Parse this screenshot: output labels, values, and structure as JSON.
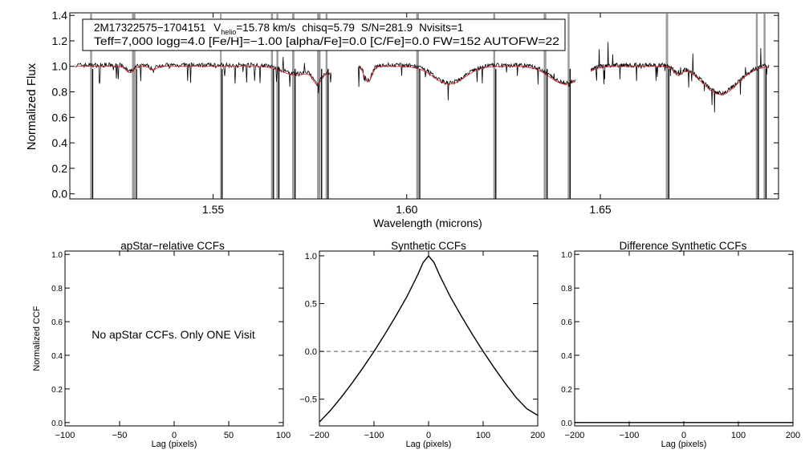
{
  "chart_data": [
    {
      "id": "spectrum",
      "type": "line",
      "title": "",
      "xlabel": "Wavelength (microns)",
      "ylabel": "Normalized Flux",
      "xlim": [
        1.513,
        1.696
      ],
      "ylim": [
        -0.04,
        1.42
      ],
      "xticks": [
        1.55,
        1.6,
        1.65
      ],
      "xtick_labels": [
        "1.55",
        "1.60",
        "1.65"
      ],
      "yticks": [
        0.0,
        0.2,
        0.4,
        0.6,
        0.8,
        1.0,
        1.2,
        1.4
      ],
      "ytick_labels": [
        "0.0",
        "0.2",
        "0.4",
        "0.6",
        "0.8",
        "1.0",
        "1.2",
        "1.4"
      ],
      "annotation": {
        "star": "2M17322575−1704151",
        "vhelio_sym": "V",
        "vhelio_sub": "helio",
        "vhelio_val": "=15.78 km/s",
        "chisq": "chisq=5.79",
        "sn": "S/N=281.9",
        "nvisits": "Nvisits=1",
        "line2": "Teff=7,000 logg=4.0 [Fe/H]=−1.00 [alpha/Fe]=0.0 [C/Fe]=0.0 FW=152 AUTOFW=22"
      },
      "chips": [
        [
          1.5145,
          1.5805
        ],
        [
          1.5875,
          1.6435
        ],
        [
          1.6475,
          1.6935
        ]
      ],
      "lines": [
        {
          "center": 1.5285,
          "width": 0.001,
          "depth": 0.05
        },
        {
          "center": 1.5345,
          "width": 0.0008,
          "depth": 0.03
        },
        {
          "center": 1.5715,
          "width": 0.0035,
          "depth": 0.07
        },
        {
          "center": 1.577,
          "width": 0.0012,
          "depth": 0.12
        },
        {
          "center": 1.58,
          "width": 0.001,
          "depth": 0.05
        },
        {
          "center": 1.59,
          "width": 0.001,
          "depth": 0.12
        },
        {
          "center": 1.611,
          "width": 0.004,
          "depth": 0.14
        },
        {
          "center": 1.641,
          "width": 0.004,
          "depth": 0.14
        },
        {
          "center": 1.681,
          "width": 0.0045,
          "depth": 0.22
        },
        {
          "center": 1.67,
          "width": 0.001,
          "depth": 0.06
        }
      ],
      "masks": [
        {
          "x": 1.5185,
          "w": 0.0005
        },
        {
          "x": 1.5295,
          "w": 0.0009
        },
        {
          "x": 1.552,
          "w": 0.0004
        },
        {
          "x": 1.5652,
          "w": 0.0005
        },
        {
          "x": 1.5666,
          "w": 0.0005
        },
        {
          "x": 1.5707,
          "w": 0.0006
        },
        {
          "x": 1.5773,
          "w": 0.0009
        },
        {
          "x": 1.5793,
          "w": 0.0005
        },
        {
          "x": 1.6028,
          "w": 0.0007
        },
        {
          "x": 1.6226,
          "w": 0.0005
        },
        {
          "x": 1.6357,
          "w": 0.0007
        },
        {
          "x": 1.6418,
          "w": 0.0005
        },
        {
          "x": 1.6672,
          "w": 0.0006
        },
        {
          "x": 1.6904,
          "w": 0.0005
        },
        {
          "x": 1.6924,
          "w": 0.0005
        }
      ],
      "series": [
        {
          "name": "observed",
          "color": "#000000"
        },
        {
          "name": "model",
          "color": "#e8262d"
        }
      ]
    },
    {
      "id": "apstar",
      "type": "line",
      "title": "apStar−relative CCFs",
      "xlabel": "Lag (pixels)",
      "ylabel": "Normalized CCF",
      "xlim": [
        -100,
        100
      ],
      "ylim": [
        -0.02,
        1.02
      ],
      "xticks": [
        -100,
        -50,
        0,
        50,
        100
      ],
      "xtick_labels": [
        "−100",
        "−50",
        "0",
        "50",
        "100"
      ],
      "yticks": [
        0.0,
        0.2,
        0.4,
        0.6,
        0.8,
        1.0
      ],
      "ytick_labels": [
        "0.0",
        "0.2",
        "0.4",
        "0.6",
        "0.8",
        "1.0"
      ],
      "message": "No apStar CCFs.  Only ONE Visit",
      "series": []
    },
    {
      "id": "synthetic",
      "type": "line",
      "title": "Synthetic CCFs",
      "xlabel": "Lag (pixels)",
      "ylabel": "",
      "xlim": [
        -200,
        200
      ],
      "ylim": [
        -0.78,
        1.05
      ],
      "xticks": [
        -200,
        -100,
        0,
        100,
        200
      ],
      "xtick_labels": [
        "−200",
        "−100",
        "0",
        "100",
        "200"
      ],
      "yticks": [
        -0.5,
        0.0,
        0.5,
        1.0
      ],
      "ytick_labels": [
        "−0.5",
        "0.0",
        "0.5",
        "1.0"
      ],
      "zero_line": 0.0,
      "series": [
        {
          "name": "ccf",
          "x": [
            -200,
            -180,
            -160,
            -140,
            -120,
            -100,
            -80,
            -60,
            -40,
            -20,
            -10,
            0,
            10,
            20,
            40,
            60,
            80,
            100,
            120,
            140,
            160,
            180,
            200
          ],
          "y": [
            -0.74,
            -0.62,
            -0.48,
            -0.33,
            -0.17,
            0.0,
            0.18,
            0.37,
            0.57,
            0.8,
            0.93,
            1.0,
            0.93,
            0.8,
            0.57,
            0.37,
            0.18,
            0.0,
            -0.17,
            -0.33,
            -0.48,
            -0.6,
            -0.67
          ]
        }
      ]
    },
    {
      "id": "difference",
      "type": "line",
      "title": "Difference Synthetic CCFs",
      "xlabel": "Lag (pixels)",
      "ylabel": "",
      "xlim": [
        -200,
        200
      ],
      "ylim": [
        -0.02,
        1.02
      ],
      "xticks": [
        -200,
        -100,
        0,
        100,
        200
      ],
      "xtick_labels": [
        "−200",
        "−100",
        "0",
        "100",
        "200"
      ],
      "yticks": [
        0.0,
        0.2,
        0.4,
        0.6,
        0.8,
        1.0
      ],
      "ytick_labels": [
        "0.0",
        "0.2",
        "0.4",
        "0.6",
        "0.8",
        "1.0"
      ],
      "series": [
        {
          "name": "difference",
          "x": [
            -200,
            200
          ],
          "y": [
            0.0,
            0.0
          ]
        }
      ]
    }
  ]
}
